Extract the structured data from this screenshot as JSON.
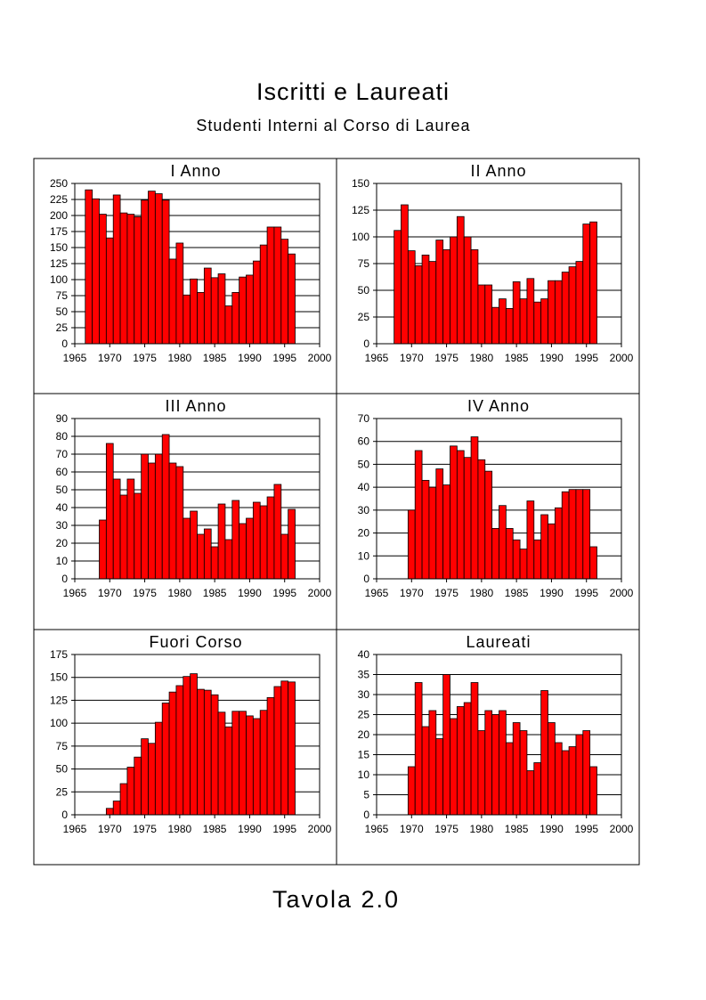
{
  "title": "Iscritti e Laureati",
  "subtitle": "Studenti Interni al Corso di Laurea",
  "footer": "Tavola 2.0",
  "colors": {
    "bar": "#ff0000",
    "bar_stroke": "#000000",
    "grid": "#000000",
    "background": "#ffffff"
  },
  "chart_data": [
    {
      "type": "bar",
      "title": "I Anno",
      "xlim": [
        1965,
        2000
      ],
      "x_ticks": [
        1965,
        1970,
        1975,
        1980,
        1985,
        1990,
        1995,
        2000
      ],
      "ylim": [
        0,
        250
      ],
      "y_ticks": [
        0,
        25,
        50,
        75,
        100,
        125,
        150,
        175,
        200,
        225,
        250
      ],
      "grid": true,
      "x": [
        1967,
        1968,
        1969,
        1970,
        1971,
        1972,
        1973,
        1974,
        1975,
        1976,
        1977,
        1978,
        1979,
        1980,
        1981,
        1982,
        1983,
        1984,
        1985,
        1986,
        1987,
        1988,
        1989,
        1990,
        1991,
        1992,
        1993,
        1994,
        1995,
        1996
      ],
      "values": [
        240,
        226,
        202,
        165,
        232,
        204,
        202,
        198,
        224,
        238,
        234,
        224,
        132,
        157,
        76,
        101,
        80,
        118,
        103,
        109,
        59,
        80,
        104,
        107,
        129,
        154,
        182,
        182,
        163,
        140
      ]
    },
    {
      "type": "bar",
      "title": "II Anno",
      "xlim": [
        1965,
        2000
      ],
      "x_ticks": [
        1965,
        1970,
        1975,
        1980,
        1985,
        1990,
        1995,
        2000
      ],
      "ylim": [
        0,
        150
      ],
      "y_ticks": [
        0,
        25,
        50,
        75,
        100,
        125,
        150
      ],
      "grid": true,
      "x": [
        1968,
        1969,
        1970,
        1971,
        1972,
        1973,
        1974,
        1975,
        1976,
        1977,
        1978,
        1979,
        1980,
        1981,
        1982,
        1983,
        1984,
        1985,
        1986,
        1987,
        1988,
        1989,
        1990,
        1991,
        1992,
        1993,
        1994,
        1995,
        1996
      ],
      "values": [
        106,
        130,
        87,
        73,
        83,
        77,
        97,
        88,
        100,
        119,
        100,
        88,
        55,
        55,
        34,
        42,
        33,
        58,
        42,
        61,
        39,
        42,
        59,
        59,
        67,
        72,
        77,
        112,
        114
      ]
    },
    {
      "type": "bar",
      "title": "III Anno",
      "xlim": [
        1965,
        2000
      ],
      "x_ticks": [
        1965,
        1970,
        1975,
        1980,
        1985,
        1990,
        1995,
        2000
      ],
      "ylim": [
        0,
        90
      ],
      "y_ticks": [
        0,
        10,
        20,
        30,
        40,
        50,
        60,
        70,
        80,
        90
      ],
      "grid": true,
      "x": [
        1969,
        1970,
        1971,
        1972,
        1973,
        1974,
        1975,
        1976,
        1977,
        1978,
        1979,
        1980,
        1981,
        1982,
        1983,
        1984,
        1985,
        1986,
        1987,
        1988,
        1989,
        1990,
        1991,
        1992,
        1993,
        1994,
        1995,
        1996
      ],
      "values": [
        33,
        76,
        56,
        47,
        56,
        48,
        70,
        65,
        70,
        81,
        65,
        63,
        34,
        38,
        25,
        28,
        18,
        42,
        22,
        44,
        31,
        34,
        43,
        41,
        46,
        53,
        25,
        39
      ]
    },
    {
      "type": "bar",
      "title": "IV Anno",
      "xlim": [
        1965,
        2000
      ],
      "x_ticks": [
        1965,
        1970,
        1975,
        1980,
        1985,
        1990,
        1995,
        2000
      ],
      "ylim": [
        0,
        70
      ],
      "y_ticks": [
        0,
        10,
        20,
        30,
        40,
        50,
        60,
        70
      ],
      "grid": true,
      "x": [
        1970,
        1971,
        1972,
        1973,
        1974,
        1975,
        1976,
        1977,
        1978,
        1979,
        1980,
        1981,
        1982,
        1983,
        1984,
        1985,
        1986,
        1987,
        1988,
        1989,
        1990,
        1991,
        1992,
        1993,
        1994,
        1995,
        1996
      ],
      "values": [
        30,
        56,
        43,
        40,
        48,
        41,
        58,
        56,
        53,
        62,
        52,
        47,
        22,
        32,
        22,
        17,
        13,
        34,
        17,
        28,
        24,
        31,
        38,
        39,
        39,
        39,
        14
      ]
    },
    {
      "type": "bar",
      "title": "Fuori Corso",
      "xlim": [
        1965,
        2000
      ],
      "x_ticks": [
        1965,
        1970,
        1975,
        1980,
        1985,
        1990,
        1995,
        2000
      ],
      "ylim": [
        0,
        175
      ],
      "y_ticks": [
        0,
        25,
        50,
        75,
        100,
        125,
        150,
        175
      ],
      "grid": true,
      "x": [
        1970,
        1971,
        1972,
        1973,
        1974,
        1975,
        1976,
        1977,
        1978,
        1979,
        1980,
        1981,
        1982,
        1983,
        1984,
        1985,
        1986,
        1987,
        1988,
        1989,
        1990,
        1991,
        1992,
        1993,
        1994,
        1995,
        1996
      ],
      "values": [
        7,
        15,
        34,
        52,
        63,
        83,
        78,
        101,
        122,
        134,
        141,
        151,
        154,
        137,
        136,
        131,
        112,
        96,
        113,
        113,
        108,
        105,
        114,
        128,
        140,
        146,
        145
      ]
    },
    {
      "type": "bar",
      "title": "Laureati",
      "xlim": [
        1965,
        2000
      ],
      "x_ticks": [
        1965,
        1970,
        1975,
        1980,
        1985,
        1990,
        1995,
        2000
      ],
      "ylim": [
        0,
        40
      ],
      "y_ticks": [
        0,
        5,
        10,
        15,
        20,
        25,
        30,
        35,
        40
      ],
      "grid": true,
      "x": [
        1970,
        1971,
        1972,
        1973,
        1974,
        1975,
        1976,
        1977,
        1978,
        1979,
        1980,
        1981,
        1982,
        1983,
        1984,
        1985,
        1986,
        1987,
        1988,
        1989,
        1990,
        1991,
        1992,
        1993,
        1994,
        1995,
        1996
      ],
      "values": [
        12,
        33,
        22,
        26,
        19,
        35,
        24,
        27,
        28,
        33,
        21,
        26,
        25,
        26,
        18,
        23,
        21,
        11,
        13,
        31,
        23,
        18,
        16,
        17,
        20,
        21,
        12
      ]
    }
  ]
}
